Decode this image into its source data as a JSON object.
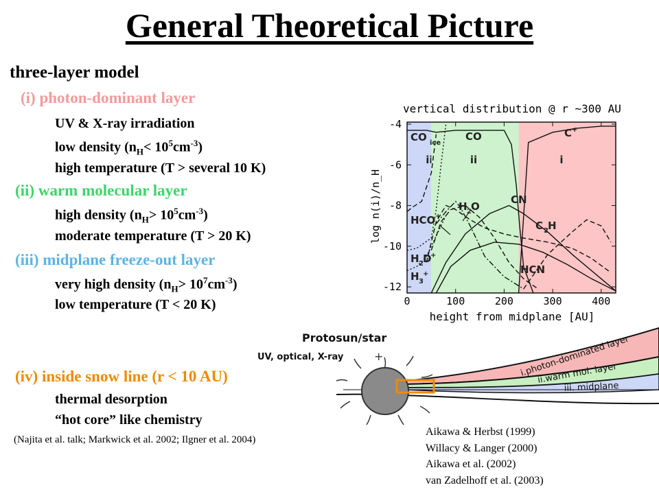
{
  "title": "General Theoretical Picture",
  "model": {
    "heading": "three-layer model",
    "layers": [
      {
        "label": "(i) photon-dominant layer",
        "color": "#f49a9a",
        "lines": [
          {
            "pre": "UV & X-ray irradiation"
          },
          {
            "pre": "low density (n",
            "sub": "H",
            "mid": "< 10",
            "sup": "5",
            "post": "cm",
            "sup2": "-3",
            "end": ")"
          },
          {
            "pre": "high temperature (T > several 10 K)"
          }
        ]
      },
      {
        "label": "(ii) warm molecular layer",
        "color": "#3fd46a",
        "lines": [
          {
            "pre": "high density (n",
            "sub": "H",
            "mid": "> 10",
            "sup": "5",
            "post": "cm",
            "sup2": "-3",
            "end": ")"
          },
          {
            "pre": "moderate temperature (T > 20 K)"
          }
        ]
      },
      {
        "label": "(iii) midplane freeze-out layer",
        "color": "#5db3e6",
        "lines": [
          {
            "pre": "very high density (n",
            "sub": "H",
            "mid": "> 10",
            "sup": "7",
            "post": "cm",
            "sup2": "-3",
            "end": ")"
          },
          {
            "pre": "low temperature (T < 20 K)"
          }
        ]
      }
    ]
  },
  "snowline": {
    "label": "(iv) inside snow line (r < 10 AU)",
    "color": "#f08a00",
    "lines": [
      "thermal desorption",
      "“hot core” like chemistry"
    ]
  },
  "citation": "(Najita et al. talk; Markwick et al. 2002; Ilgner et al. 2004)",
  "references": [
    "Aikawa & Herbst (1999)",
    "Willacy & Langer (2000)",
    "Aikawa et al. (2002)",
    "van Zadelhoff et al. (2003)"
  ],
  "chart_data": {
    "type": "line",
    "title": "vertical distribution @ r ~300 AU",
    "xlabel": "height from midplane [AU]",
    "ylabel": "log n(i)/n_H",
    "xlim": [
      0,
      430
    ],
    "ylim": [
      -12.3,
      -3.9
    ],
    "xticks": [
      "0",
      "100",
      "200",
      "300",
      "400"
    ],
    "xtick_values": [
      0,
      100,
      200,
      300,
      400
    ],
    "yticks": [
      "-4",
      "-6",
      "-8",
      "-10",
      "-12"
    ],
    "ytick_values": [
      -4,
      -6,
      -8,
      -10,
      -12
    ],
    "regions": [
      {
        "label": "iii",
        "from": 0,
        "to": 50,
        "color": "#cdd7f7"
      },
      {
        "label": "ii",
        "from": 50,
        "to": 230,
        "color": "#cdf2cd"
      },
      {
        "label": "i",
        "from": 230,
        "to": 430,
        "color": "#fdc5c5"
      }
    ],
    "species_labels": [
      "CO",
      "ice",
      "CO",
      "C",
      "+",
      "H",
      "2",
      "O",
      "CN",
      "HCO",
      "+",
      "C",
      "2",
      "H",
      "H",
      "2",
      "D",
      "+",
      "H",
      "3",
      "+",
      "HCN"
    ],
    "series": [
      {
        "style": "solid",
        "x": [
          0,
          40,
          60,
          100,
          150,
          200,
          215,
          225,
          232,
          240,
          260
        ],
        "y": [
          -4.3,
          -4.3,
          -4.4,
          -4.3,
          -4.3,
          -4.3,
          -5.0,
          -7.0,
          -9.0,
          -11.0,
          -12.3
        ]
      },
      {
        "style": "solid",
        "x": [
          230,
          250,
          300,
          350,
          400,
          430
        ],
        "y": [
          -12.3,
          -4.9,
          -4.4,
          -4.2,
          -4.1,
          -4.1
        ]
      },
      {
        "style": "solid",
        "x": [
          50,
          80,
          120,
          170,
          210,
          240,
          290,
          340,
          400,
          430
        ],
        "y": [
          -12.3,
          -10.8,
          -9.4,
          -8.4,
          -8.0,
          -8.4,
          -9.3,
          -10.4,
          -11.6,
          -12.2
        ]
      },
      {
        "style": "solid",
        "x": [
          60,
          90,
          130,
          180,
          230,
          280,
          330,
          380,
          430
        ],
        "y": [
          -12.3,
          -11.0,
          -10.2,
          -9.8,
          -9.9,
          -10.3,
          -10.9,
          -11.6,
          -12.2
        ]
      },
      {
        "style": "dashed",
        "x": [
          0,
          10,
          30,
          50,
          60
        ],
        "y": [
          -8.3,
          -8.1,
          -7.8,
          -6.4,
          -4.5
        ]
      },
      {
        "style": "dashed",
        "x": [
          40,
          60,
          80,
          100,
          130,
          160,
          200,
          240,
          290,
          340,
          380,
          420
        ],
        "y": [
          -10.8,
          -8.8,
          -8.0,
          -8.2,
          -8.7,
          -9.1,
          -9.4,
          -9.6,
          -9.8,
          -10.1,
          -10.6,
          -11.3
        ]
      },
      {
        "style": "dashdot",
        "x": [
          60,
          80,
          100,
          110,
          130,
          160,
          200,
          240
        ],
        "y": [
          -8.9,
          -8.3,
          -7.8,
          -8.1,
          -9.0,
          -10.5,
          -11.5,
          -12.1
        ]
      },
      {
        "style": "dashed",
        "x": [
          50,
          70,
          90,
          120,
          150,
          180,
          210,
          240,
          270
        ],
        "y": [
          -10.2,
          -8.8,
          -8.2,
          -8.0,
          -8.6,
          -9.6,
          -10.8,
          -11.6,
          -12.1
        ]
      },
      {
        "style": "dashed",
        "x": [
          240,
          290,
          340,
          370,
          400,
          420
        ],
        "y": [
          -12.1,
          -10.4,
          -9.3,
          -8.7,
          -9.0,
          -9.8
        ]
      },
      {
        "style": "dotted",
        "x": [
          0,
          20,
          50,
          60,
          70,
          80
        ],
        "y": [
          -10.2,
          -10.1,
          -9.6,
          -8.2,
          -6.0,
          -4.0
        ]
      },
      {
        "style": "dotted",
        "x": [
          0,
          20,
          40,
          60,
          80
        ],
        "y": [
          -11.2,
          -11.0,
          -10.5,
          -9.5,
          -8.5
        ]
      }
    ]
  },
  "diagram": {
    "star_label": "Protosun/star",
    "radiation_label": "UV, optical, X-ray",
    "layer_labels": [
      {
        "prefix": "i.",
        "text": "photon-dominated layer",
        "color": "#f7b7b7"
      },
      {
        "prefix": "ii.",
        "text": "warm mol. layer",
        "color": "#c8efc0"
      },
      {
        "prefix": "iii.",
        "text": "midplane",
        "color": "#cdd7f7"
      }
    ]
  }
}
